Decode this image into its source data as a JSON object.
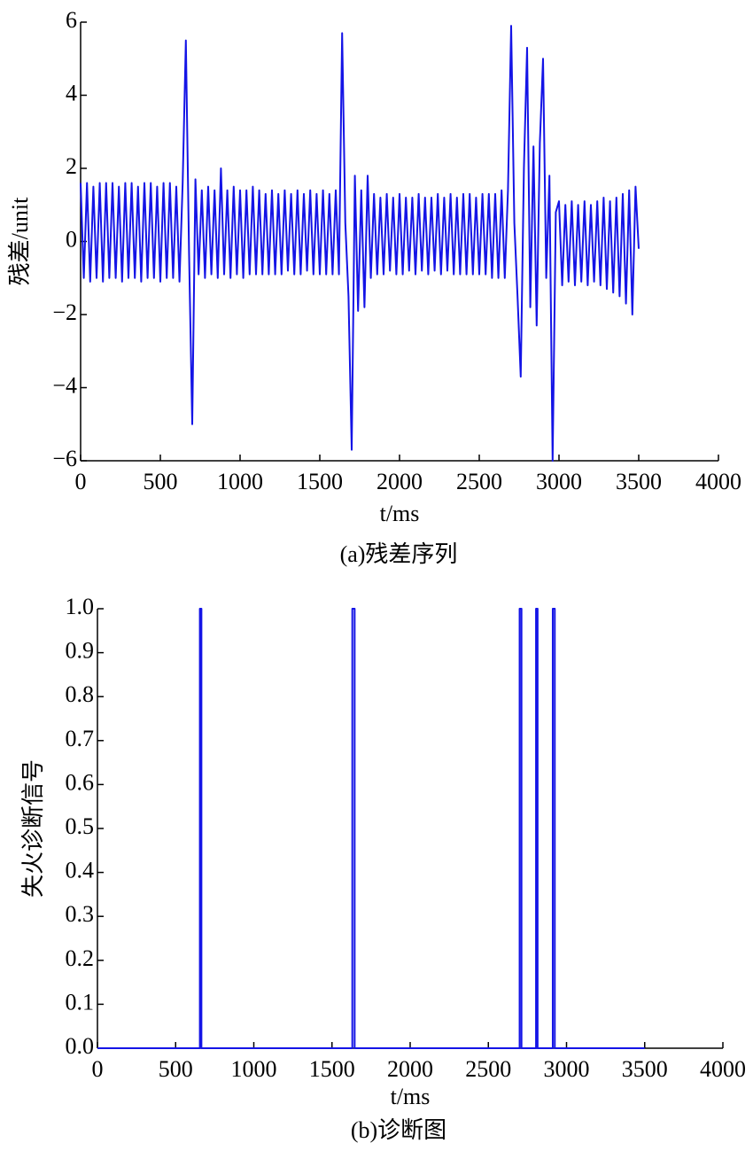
{
  "chart_data": [
    {
      "type": "line",
      "caption": "(a)残差序列",
      "xlabel": "t/ms",
      "ylabel": "残差/unit",
      "xlim": [
        0,
        4000
      ],
      "xticks": [
        0,
        500,
        1000,
        1500,
        2000,
        2500,
        3000,
        3500,
        4000
      ],
      "ylim": [
        -6,
        6
      ],
      "yticks": [
        {
          "value": -6,
          "label": "−6"
        },
        {
          "value": -4,
          "label": "−4"
        },
        {
          "value": -2,
          "label": "−2"
        },
        0,
        2,
        4,
        6
      ],
      "x": [
        0,
        20,
        40,
        60,
        80,
        100,
        120,
        140,
        160,
        180,
        200,
        220,
        240,
        260,
        280,
        300,
        320,
        340,
        360,
        380,
        400,
        420,
        440,
        460,
        480,
        500,
        520,
        540,
        560,
        580,
        600,
        620,
        640,
        660,
        680,
        700,
        720,
        740,
        760,
        780,
        800,
        820,
        840,
        860,
        880,
        900,
        920,
        940,
        960,
        980,
        1000,
        1020,
        1040,
        1060,
        1080,
        1100,
        1120,
        1140,
        1160,
        1180,
        1200,
        1220,
        1240,
        1260,
        1280,
        1300,
        1320,
        1340,
        1360,
        1380,
        1400,
        1420,
        1440,
        1460,
        1480,
        1500,
        1520,
        1540,
        1560,
        1580,
        1600,
        1620,
        1640,
        1660,
        1680,
        1700,
        1720,
        1740,
        1760,
        1780,
        1800,
        1820,
        1840,
        1860,
        1880,
        1900,
        1920,
        1940,
        1960,
        1980,
        2000,
        2020,
        2040,
        2060,
        2080,
        2100,
        2120,
        2140,
        2160,
        2180,
        2200,
        2220,
        2240,
        2260,
        2280,
        2300,
        2320,
        2340,
        2360,
        2380,
        2400,
        2420,
        2440,
        2460,
        2480,
        2500,
        2520,
        2540,
        2560,
        2580,
        2600,
        2620,
        2640,
        2660,
        2680,
        2700,
        2720,
        2740,
        2760,
        2780,
        2800,
        2820,
        2840,
        2860,
        2880,
        2900,
        2920,
        2940,
        2960,
        2980,
        3000,
        3020,
        3040,
        3060,
        3080,
        3100,
        3120,
        3140,
        3160,
        3180,
        3200,
        3220,
        3240,
        3260,
        3280,
        3300,
        3320,
        3340,
        3360,
        3380,
        3400,
        3420,
        3440,
        3460,
        3480,
        3500
      ],
      "series": [
        {
          "color": "#1414e6",
          "values": [
            1.6,
            -1.0,
            1.6,
            -1.1,
            1.5,
            -1.0,
            1.6,
            -1.1,
            1.6,
            -1.0,
            1.6,
            -1.0,
            1.5,
            -1.1,
            1.6,
            -1.0,
            1.6,
            -1.0,
            1.5,
            -1.1,
            1.6,
            -1.0,
            1.6,
            -1.0,
            1.5,
            -1.1,
            1.6,
            -1.0,
            1.6,
            -1.0,
            1.5,
            -1.1,
            1.6,
            5.5,
            -0.3,
            -5.0,
            1.7,
            -0.9,
            1.4,
            -1.0,
            1.5,
            -0.9,
            1.4,
            -1.0,
            2.0,
            -0.9,
            1.4,
            -1.0,
            1.5,
            -0.9,
            1.4,
            -1.0,
            1.4,
            -0.9,
            1.5,
            -0.9,
            1.4,
            -0.9,
            1.3,
            -0.9,
            1.4,
            -0.9,
            1.3,
            -0.9,
            1.4,
            -0.8,
            1.3,
            -0.9,
            1.4,
            -0.9,
            1.3,
            -0.8,
            1.4,
            -0.9,
            1.3,
            -0.9,
            1.4,
            -0.9,
            1.3,
            -0.9,
            1.4,
            -0.9,
            5.7,
            0.5,
            -1.5,
            -5.7,
            1.8,
            -1.9,
            1.4,
            -1.8,
            1.8,
            -1.0,
            1.3,
            -0.9,
            1.2,
            -0.9,
            1.3,
            -0.8,
            1.2,
            -0.9,
            1.3,
            -0.9,
            1.2,
            -0.8,
            1.2,
            -0.9,
            1.3,
            -0.8,
            1.2,
            -0.9,
            1.2,
            -0.8,
            1.3,
            -0.9,
            1.2,
            -0.8,
            1.3,
            -0.9,
            1.2,
            -0.9,
            1.3,
            -0.9,
            1.3,
            -0.9,
            1.2,
            -0.9,
            1.3,
            -0.9,
            1.3,
            -1.0,
            1.3,
            -1.0,
            1.4,
            -1.0,
            1.4,
            5.9,
            0.5,
            -1.5,
            -3.7,
            2.0,
            5.3,
            -1.8,
            2.6,
            -2.3,
            2.7,
            5.0,
            -1.0,
            1.8,
            -6.0,
            0.8,
            1.1,
            -1.2,
            1.0,
            -1.1,
            1.1,
            -1.2,
            1.0,
            -1.1,
            1.1,
            -1.2,
            1.0,
            -1.1,
            1.1,
            -1.2,
            1.2,
            -1.3,
            1.1,
            -1.4,
            1.2,
            -1.5,
            1.3,
            -1.7,
            1.4,
            -2.0,
            1.5,
            -0.2
          ]
        }
      ]
    },
    {
      "type": "line",
      "caption": "(b)诊断图",
      "xlabel": "t/ms",
      "ylabel": "失火诊断信号",
      "xlim": [
        0,
        4000
      ],
      "xticks": [
        0,
        500,
        1000,
        1500,
        2000,
        2500,
        3000,
        3500,
        4000
      ],
      "ylim": [
        0,
        1
      ],
      "yticks": [
        {
          "value": 0,
          "label": "0.0"
        },
        0.1,
        0.2,
        0.3,
        0.4,
        0.5,
        0.6,
        0.7,
        0.8,
        0.9,
        {
          "value": 1,
          "label": "1.0"
        }
      ],
      "x": [
        0,
        655,
        655,
        665,
        665,
        1630,
        1630,
        1645,
        1645,
        2700,
        2700,
        2712,
        2712,
        2805,
        2805,
        2815,
        2815,
        2912,
        2912,
        2925,
        2925,
        3500
      ],
      "series": [
        {
          "color": "#1414e6",
          "values": [
            0,
            0,
            1,
            1,
            0,
            0,
            1,
            1,
            0,
            0,
            1,
            1,
            0,
            0,
            1,
            1,
            0,
            0,
            1,
            1,
            0,
            0
          ]
        }
      ]
    }
  ]
}
